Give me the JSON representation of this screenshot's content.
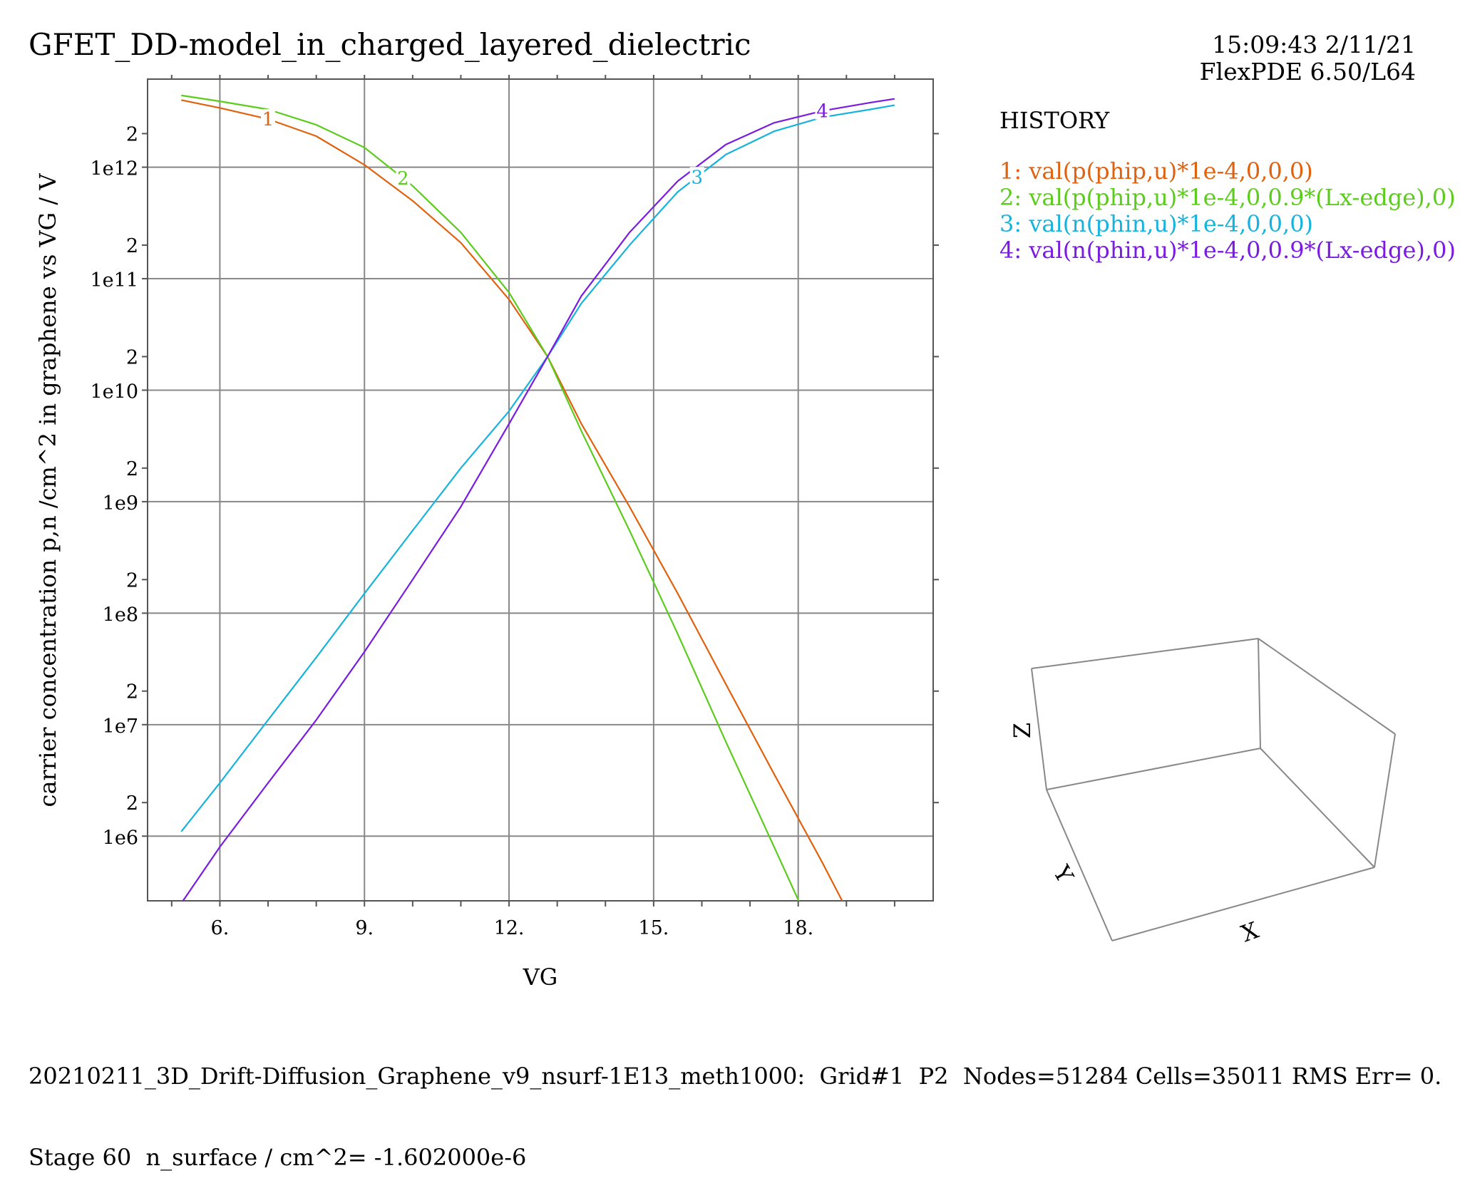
{
  "page": {
    "title": "GFET_DD-model_in_charged_layered_dielectric",
    "time": "15:09:43 2/11/21",
    "version": "FlexPDE 6.50/L64",
    "history_title": "HISTORY",
    "footer_line1": "20210211_3D_Drift-Diffusion_Graphene_v9_nsurf-1E13_meth1000:  Grid#1  P2  Nodes=51284 Cells=35011 RMS Err= 0.",
    "footer_line2": "Stage 60  n_surface / cm^2= -1.602000e-6"
  },
  "legend": [
    {
      "text": "1: val(p(phip,u)*1e-4,0,0,0)",
      "color": "#e0610e"
    },
    {
      "text": "2: val(p(phip,u)*1e-4,0,0.9*(Lx-edge),0)",
      "color": "#5ccc1c"
    },
    {
      "text": "3: val(n(phin,u)*1e-4,0,0,0)",
      "color": "#16b3dc"
    },
    {
      "text": "4: val(n(phin,u)*1e-4,0,0.9*(Lx-edge),0)",
      "color": "#7a1ce0"
    }
  ],
  "axes3d": {
    "x": "X",
    "y": "Y",
    "z": "Z"
  },
  "chart_data": {
    "type": "line",
    "title": "GFET_DD-model_in_charged_layered_dielectric",
    "xlabel": "VG",
    "ylabel": "carrier concentration p,n /cm^2 in graphene vs VG / V",
    "xlim": [
      4.5,
      20.8
    ],
    "ylim_log10": [
      5.42,
      12.79
    ],
    "yscale": "log",
    "grid": true,
    "x_ticks": [
      6,
      9,
      12,
      15,
      18
    ],
    "x_tick_labels": [
      "6.",
      "9.",
      "12.",
      "15.",
      "18."
    ],
    "y_ticks": [
      1000000.0,
      10000000.0,
      100000000.0,
      1000000000.0,
      10000000000.0,
      100000000000.0,
      1000000000000.0
    ],
    "y_tick_labels": [
      "1e6",
      "1e7",
      "1e8",
      "1e9",
      "1e10",
      "1e11",
      "1e12"
    ],
    "y_minor_label": "2",
    "series": [
      {
        "name": "1",
        "color": "#e0610e",
        "x": [
          5.2,
          6.0,
          7.0,
          8.0,
          9.0,
          10.0,
          11.0,
          12.0,
          12.8,
          13.5,
          14.5,
          15.5,
          16.5,
          17.5,
          18.5,
          19.5,
          20.0
        ],
        "y": [
          4000000000000.0,
          3400000000000.0,
          2700000000000.0,
          1900000000000.0,
          1050000000000.0,
          500000000000.0,
          210000000000.0,
          65000000000.0,
          20000000000.0,
          5000000000.0,
          900000000.0,
          150000000.0,
          23000000.0,
          3600000.0,
          580000.0,
          85000.0,
          38000.0
        ]
      },
      {
        "name": "2",
        "color": "#5ccc1c",
        "x": [
          5.2,
          6.0,
          7.0,
          8.0,
          9.0,
          10.0,
          11.0,
          12.0,
          12.8,
          13.5,
          14.5,
          15.5,
          16.5,
          17.5,
          18.5,
          19.5,
          20.0
        ],
        "y": [
          4400000000000.0,
          3900000000000.0,
          3300000000000.0,
          2400000000000.0,
          1500000000000.0,
          680000000000.0,
          260000000000.0,
          75000000000.0,
          20000000000.0,
          4300000000.0,
          550000000.0,
          65000000.0,
          7000000.0,
          800000.0,
          90000.0,
          11000.0,
          3700.0
        ]
      },
      {
        "name": "3",
        "color": "#16b3dc",
        "x": [
          5.2,
          6.0,
          7.0,
          8.0,
          9.0,
          10.0,
          11.0,
          12.0,
          12.8,
          13.5,
          14.5,
          15.5,
          16.5,
          17.5,
          18.5,
          19.5,
          20.0
        ],
        "y": [
          1100000.0,
          3000000.0,
          11000000.0,
          40000000.0,
          150000000.0,
          550000000.0,
          2000000000.0,
          6500000000.0,
          20000000000.0,
          60000000000.0,
          200000000000.0,
          600000000000.0,
          1300000000000.0,
          2100000000000.0,
          2800000000000.0,
          3300000000000.0,
          3600000000000.0
        ]
      },
      {
        "name": "4",
        "color": "#7a1ce0",
        "x": [
          5.2,
          6.0,
          7.0,
          8.0,
          9.0,
          10.0,
          11.0,
          12.0,
          12.8,
          13.5,
          14.5,
          15.5,
          16.5,
          17.5,
          18.5,
          19.5,
          20.0
        ],
        "y": [
          250000.0,
          800000.0,
          3000000.0,
          11000000.0,
          45000000.0,
          200000000.0,
          900000000.0,
          5000000000.0,
          20000000000.0,
          70000000000.0,
          260000000000.0,
          750000000000.0,
          1600000000000.0,
          2500000000000.0,
          3200000000000.0,
          3800000000000.0,
          4100000000000.0
        ]
      }
    ],
    "curve_labels": [
      {
        "text": "1",
        "series": 0,
        "x": 7.0,
        "color": "#e0610e"
      },
      {
        "text": "2",
        "series": 1,
        "x": 9.8,
        "color": "#5ccc1c"
      },
      {
        "text": "3",
        "series": 2,
        "x": 15.9,
        "color": "#16b3dc"
      },
      {
        "text": "4",
        "series": 3,
        "x": 18.5,
        "color": "#7a1ce0"
      }
    ]
  }
}
